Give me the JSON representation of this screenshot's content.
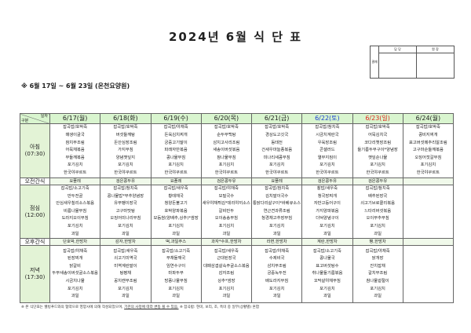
{
  "title": "2024년 6월 식 단 표",
  "period": "※ 6월 17일 ~ 6월 23일 (온천요양원)",
  "approval": {
    "label": "결재",
    "cols": [
      "담 당",
      "원 장"
    ]
  },
  "table": {
    "corner_top": "일자",
    "corner_bottom": "구분",
    "colors": {
      "header_bg": "#d9f5cf",
      "saturday": "#1a3fd1",
      "sunday": "#e0281c"
    },
    "dates": [
      {
        "label": "6/17(월)",
        "type": "weekday"
      },
      {
        "label": "6/18(화)",
        "type": "weekday"
      },
      {
        "label": "6/19(수)",
        "type": "weekday"
      },
      {
        "label": "6/20(목)",
        "type": "weekday"
      },
      {
        "label": "6/21(금)",
        "type": "weekday"
      },
      {
        "label": "6/22(토)",
        "type": "saturday"
      },
      {
        "label": "6/23(일)",
        "type": "sunday"
      },
      {
        "label": "6/24(월)",
        "type": "weekday"
      }
    ],
    "rows": [
      {
        "label": "아침",
        "time": "(07:30)",
        "kind": "meal",
        "cells": [
          [
            "잡곡밥/호박죽",
            "매생이굴국",
            "참치무조림",
            "어묵채볶음",
            "무들깨볶음",
            "포기김치",
            "한국야쿠르트"
          ],
          [
            "잡곡밥/호박죽",
            "버섯들깨탕",
            "돈안심장조림",
            "가지무침",
            "양념깻잎지",
            "포기김치",
            "한국야쿠르트"
          ],
          [
            "잡곡밥/야채죽",
            "돈육김치찌개",
            "궁중고기말이",
            "파래자반볶음",
            "콩나물무침",
            "포기김치",
            "한국야쿠르트"
          ],
          [
            "잡곡밥/호박죽",
            "순두부백탕",
            "삼치고사리조림",
            "새송이버섯볶음",
            "참나물무침",
            "포기김치",
            "한국야쿠르트"
          ],
          [
            "잡곡밥/호박죽",
            "경상도고깃국",
            "동태전",
            "건새우마늘종볶음",
            "미나리새콤무침",
            "포기김치",
            "한국야쿠르트"
          ],
          [
            "잡곡밥/참치죽",
            "시금치계란국",
            "우육장조림",
            "콘샐러드",
            "열무지짐이",
            "포기김치",
            "한국야쿠르트"
          ],
          [
            "잡곡밥/호박죽",
            "어묵김치국",
            "코다리옛장조림",
            "들기름두부구이*양념장",
            "깻잎순나물",
            "포기김치",
            "한국야쿠르트"
          ],
          [
            "잡곡밥/호박죽",
            "콩비지찌개",
            "표고버섯메추리알조림",
            "고구마순들깨볶음",
            "오징어젓갈무침",
            "포기김치",
            "한국야쿠르트"
          ]
        ]
      },
      {
        "label": "오전간식",
        "kind": "snack",
        "cells": [
          "요플레",
          "검은콩두유",
          "요플레",
          "검은콩두유",
          "요플레",
          "검은콩두유",
          "검은콩두유",
          ""
        ]
      },
      {
        "label": "점심",
        "time": "(12:00)",
        "kind": "meal",
        "cells": [
          [
            "잡곡밥/소고기죽",
            "만두전골",
            "안심새우칠리소스볶음",
            "비름나물무침",
            "도라지오이무침",
            "포기김치",
            "과일"
          ],
          [
            "잡곡밥/참치죽",
            "콩나물밥*부추양념장",
            "유부팽이장국",
            "고구마맛탕",
            "오징어미나리무침",
            "포기김치",
            "과일"
          ],
          [
            "잡곡밥/새우죽",
            "황태채국",
            "청양돈불고기",
            "호박양파볶음",
            "모듬쌈(양배추,상추)*쌈장",
            "포기김치",
            "과일"
          ],
          [
            "잡곡밥/야채죽",
            "모밀국수",
            "새우야채튀김*데리야끼소스",
            "갈비만두",
            "오이송송무침",
            "포기김치",
            "과일"
          ],
          [
            "잡곡밥/참치죽",
            "김치말이국수",
            "통닭다리살구이*바베큐소스",
            "연근견과류조림",
            "청경채고추장무침",
            "포기김치",
            "과일"
          ],
          [
            "찰밥/새우죽",
            "청국장찌개",
            "자반고등어구이",
            "가지양파볶음",
            "더덕양념구이",
            "포기김치",
            "과일"
          ],
          [
            "잡곡밥/참치죽",
            "배추된장국",
            "쇠고기브로콜리볶음",
            "느타리버섯볶음",
            "오이부추무침",
            "포기김치",
            "과일"
          ],
          []
        ]
      },
      {
        "label": "오후간식",
        "kind": "snack",
        "cells": [
          "단호박,한방차",
          "감자,한방차",
          "떡,과일주스",
          "과자*수프,한방차",
          "라면,한방차",
          "계란,한방차",
          "빵,한방차",
          ""
        ]
      },
      {
        "label": "저녁",
        "time": "(17:30)",
        "kind": "meal",
        "cells": [
          [
            "잡곡밥/야채죽",
            "된장찌개",
            "닭갈비",
            "두부새송이버섯굴소스볶음",
            "시금치나물",
            "포기김치",
            "과일"
          ],
          [
            "잡곡밥/새우죽",
            "쇠고기미역국",
            "미역계란말이",
            "탕평채",
            "꽁치캔무조림",
            "포기김치",
            "과일"
          ],
          [
            "잡곡밥/소고기죽",
            "무채들깨국",
            "임연수구이",
            "마파두부",
            "방풍나물무침",
            "포기김치",
            "과일"
          ],
          [
            "잡곡밥/새우죽",
            "근대된장국",
            "대패삼겹살숙주굴소스볶음",
            "감자조림",
            "상추*쌈장",
            "포기김치",
            "과일"
          ],
          [
            "잡곡밥/야채죽",
            "수제비국",
            "삼치무조림",
            "궁중녹두전",
            "배도라지무침",
            "포기김치",
            "과일"
          ],
          [
            "잡곡밥/소고기죽",
            "콩나물국",
            "표고버섯탕수",
            "취나물들기름볶음",
            "꼬막살야채무침",
            "포기김치",
            "과일"
          ],
          [
            "잡곡밥/야채죽",
            "닭개장",
            "잔치잡채",
            "갈치무조림",
            "참나물겉절이",
            "포기김치",
            "과일"
          ],
          []
        ]
      }
    ]
  },
  "note": {
    "part1": "※ 본 식단표는 웰빙푸드와의 협약으로 영양사에 의해 작성되었으며,",
    "part2": "기관의 사정에 따라 변동 될 수 있음.",
    "part3": "※ 잡곡밥: 현미, 보리, 조, 흑미 중 일부(상황별) 혼합"
  }
}
